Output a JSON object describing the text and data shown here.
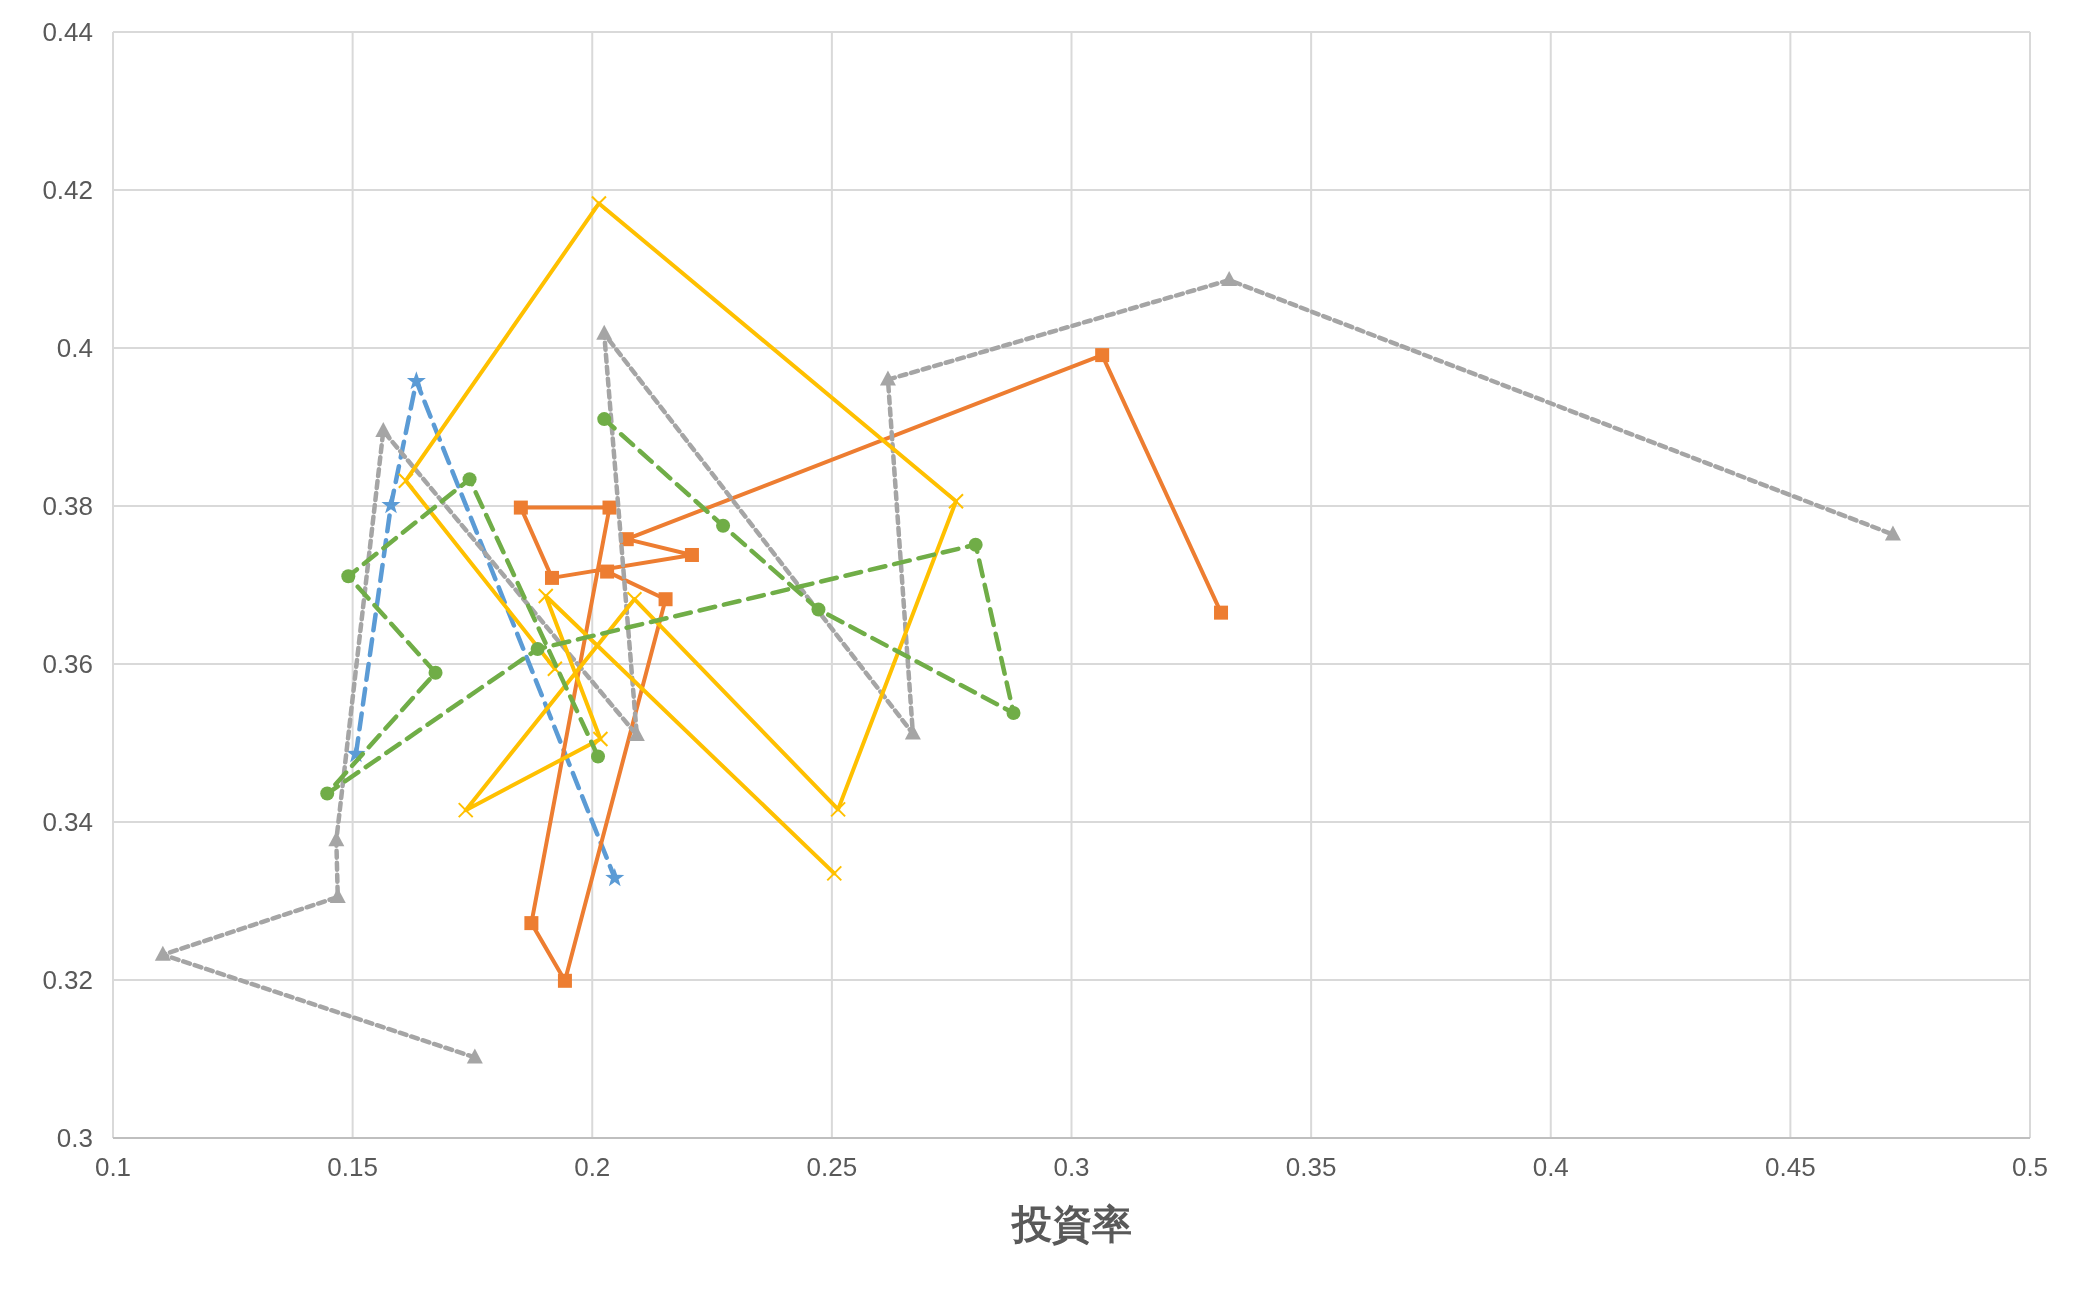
{
  "chart_data": {
    "type": "line",
    "xlabel": "投資率",
    "xlim": [
      0.1,
      0.5
    ],
    "xticks": [
      0.1,
      0.15,
      0.2,
      0.25,
      0.3,
      0.35,
      0.4,
      0.45,
      0.5
    ],
    "ylim": [
      0.3,
      0.44
    ],
    "yticks": [
      0.3,
      0.32,
      0.34,
      0.36,
      0.38,
      0.4,
      0.42,
      0.44
    ],
    "grid": true,
    "legend": false,
    "series": [
      {
        "color": "#5b9bd5",
        "marker": "star",
        "line_style": "dashed",
        "x": [
          0.1507,
          0.158,
          0.1633,
          0.2047
        ],
        "values": [
          0.3486,
          0.3801,
          0.3958,
          0.3329
        ]
      },
      {
        "color": "#ed7d31",
        "marker": "square",
        "line_style": "solid",
        "x": [
          0.2031,
          0.2153,
          0.1943,
          0.1873,
          0.2036,
          0.1851,
          0.1916,
          0.2208,
          0.2072,
          0.3064,
          0.3312
        ],
        "values": [
          0.3717,
          0.3682,
          0.3199,
          0.3272,
          0.3798,
          0.3798,
          0.3709,
          0.3738,
          0.3758,
          0.3991,
          0.3665
        ]
      },
      {
        "color": "#a5a5a5",
        "marker": "triangle",
        "line_style": "dotted",
        "x": [
          0.1755,
          0.1104,
          0.1469,
          0.1466,
          0.1564,
          0.2093,
          0.2025,
          0.2669,
          0.2617,
          0.3329,
          0.4714
        ],
        "values": [
          0.3102,
          0.3232,
          0.3305,
          0.3377,
          0.3895,
          0.351,
          0.4018,
          0.3512,
          0.396,
          0.4086,
          0.3764
        ]
      },
      {
        "color": "#ffc000",
        "marker": "cross",
        "line_style": "solid",
        "x": [
          0.1922,
          0.1611,
          0.2014,
          0.2759,
          0.2513,
          0.2088,
          0.1736,
          0.2017,
          0.1903,
          0.2505
        ],
        "values": [
          0.3594,
          0.3832,
          0.4183,
          0.3806,
          0.3416,
          0.3682,
          0.3415,
          0.3505,
          0.3686,
          0.3335
        ]
      },
      {
        "color": "#70ad47",
        "marker": "circle",
        "line_style": "dashed",
        "x": [
          0.2012,
          0.1744,
          0.1491,
          0.1673,
          0.1447,
          0.1886,
          0.28,
          0.2879,
          0.2472,
          0.2273,
          0.2025
        ],
        "values": [
          0.3483,
          0.3834,
          0.3711,
          0.3589,
          0.3436,
          0.3619,
          0.3751,
          0.3538,
          0.3669,
          0.3775,
          0.391
        ]
      }
    ]
  }
}
